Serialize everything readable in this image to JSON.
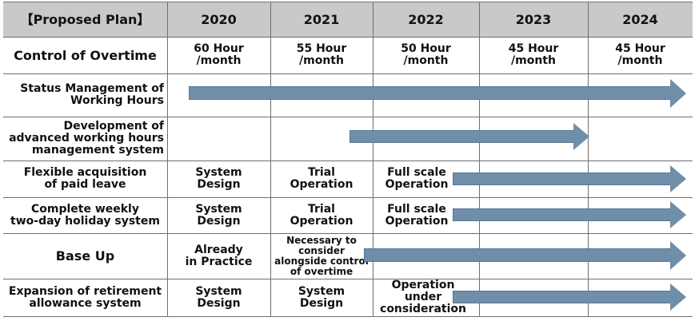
{
  "header": {
    "title": "【Proposed Plan】",
    "years": [
      "2020",
      "2021",
      "2022",
      "2023",
      "2024"
    ]
  },
  "rows": [
    {
      "label": "Control of Overtime",
      "cells": [
        "60 Hour\n/month",
        "55 Hour\n/month",
        "50 Hour\n/month",
        "45 Hour\n/month",
        "45 Hour\n/month"
      ]
    },
    {
      "label": "Status Management of\nWorking Hours"
    },
    {
      "label": "Development of\nadvanced working hours\nmanagement system"
    },
    {
      "label": "Flexible acquisition\nof paid leave",
      "cells": [
        "System\nDesign",
        "Trial\nOperation",
        "Full scale\nOperation"
      ]
    },
    {
      "label": "Complete weekly\ntwo-day holiday system",
      "cells": [
        "System\nDesign",
        "Trial\nOperation",
        "Full scale\nOperation"
      ]
    },
    {
      "label": "Base Up",
      "cells": [
        "Already\nin Practice",
        "Necessary to\nconsider\nalongside control\nof overtime"
      ]
    },
    {
      "label": "Expansion of retirement\nallowance system",
      "cells": [
        "System\nDesign",
        "System\nDesign",
        "Operation\nunder\nconsideration"
      ]
    }
  ],
  "colors": {
    "header_bg": "#c9c9c9",
    "arrow": "#6f8ea9",
    "grid": "#6f6f6f"
  }
}
